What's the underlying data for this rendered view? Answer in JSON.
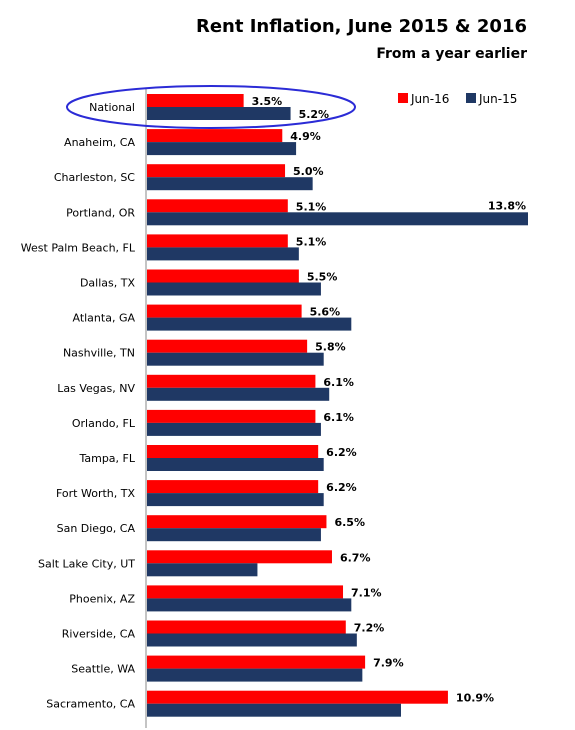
{
  "chart_data": {
    "type": "bar",
    "orientation": "horizontal",
    "title": "Rent Inflation, June 2015 & 2016",
    "subtitle": "From a year earlier",
    "categories": [
      "National",
      "Anaheim, CA",
      "Charleston, SC",
      "Portland, OR",
      "West Palm Beach, FL",
      "Dallas, TX",
      "Atlanta, GA",
      "Nashville, TN",
      "Las Vegas, NV",
      "Orlando, FL",
      "Tampa, FL",
      "Fort Worth, TX",
      "San Diego, CA",
      "Salt Lake City, UT",
      "Phoenix, AZ",
      "Riverside, CA",
      "Seattle, WA",
      "Sacramento, CA"
    ],
    "series": [
      {
        "name": "Jun-16",
        "color": "#ff0000",
        "values": [
          3.5,
          4.9,
          5.0,
          5.1,
          5.1,
          5.5,
          5.6,
          5.8,
          6.1,
          6.1,
          6.2,
          6.2,
          6.5,
          6.7,
          7.1,
          7.2,
          7.9,
          10.9
        ],
        "labels": [
          "3.5%",
          "4.9%",
          "5.0%",
          "5.1%",
          "5.1%",
          "5.5%",
          "5.6%",
          "5.8%",
          "6.1%",
          "6.1%",
          "6.2%",
          "6.2%",
          "6.5%",
          "6.7%",
          "7.1%",
          "7.2%",
          "7.9%",
          "10.9%"
        ]
      },
      {
        "name": "Jun-15",
        "color": "#1f3864",
        "values": [
          5.2,
          5.4,
          6.0,
          13.8,
          5.5,
          6.3,
          7.4,
          6.4,
          6.6,
          6.3,
          6.4,
          6.4,
          6.3,
          4.0,
          7.4,
          7.6,
          7.8,
          9.2
        ],
        "labels": [
          "5.2%",
          "",
          "",
          "13.8%",
          "",
          "",
          "",
          "",
          "",
          "",
          "",
          "",
          "",
          "",
          "",
          "",
          "",
          ""
        ]
      }
    ],
    "xlim": [
      0,
      13.8
    ],
    "legend": "top-right",
    "grid": false,
    "highlight": "National"
  }
}
